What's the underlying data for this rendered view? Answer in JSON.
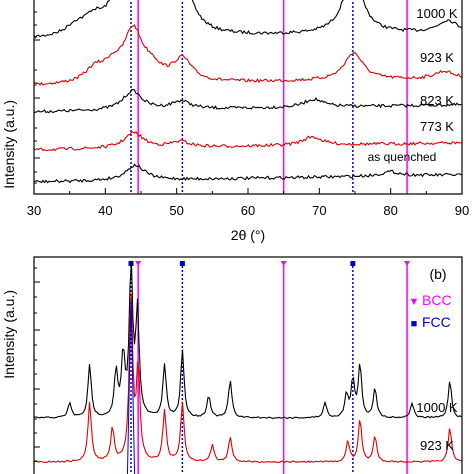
{
  "chart_data": [
    {
      "panel": "a",
      "type": "line",
      "ylabel": "Intensity (a.u.)",
      "xlabel": "2θ (°)",
      "xlim": [
        30,
        90
      ],
      "xticks": [
        "30",
        "40",
        "50",
        "60",
        "70",
        "80",
        "90"
      ],
      "colors": {
        "black": "#000000",
        "red": "#e00000",
        "bcc_line": "#ff00ff",
        "fcc_line": "#0000cc"
      },
      "reference_lines": {
        "bcc": [
          44.6,
          65.0,
          82.3
        ],
        "fcc": [
          43.6,
          50.8,
          74.7
        ]
      },
      "series": [
        {
          "name": "1000 K",
          "color": "#000000",
          "peaks": [
            [
              35.8,
              0.15
            ],
            [
              38.3,
              0.25
            ],
            [
              41.2,
              0.2
            ],
            [
              43.6,
              1.0
            ],
            [
              44.6,
              0.8
            ],
            [
              47.5,
              0.35
            ],
            [
              50.8,
              0.9
            ],
            [
              74.7,
              1.0
            ],
            [
              88.0,
              0.2
            ]
          ]
        },
        {
          "name": "923 K",
          "color": "#e00000",
          "peaks": [
            [
              38.5,
              0.25
            ],
            [
              41.0,
              0.3
            ],
            [
              43.9,
              1.0
            ],
            [
              46.5,
              0.25
            ],
            [
              50.8,
              0.45
            ],
            [
              74.8,
              0.55
            ],
            [
              87.5,
              0.15
            ]
          ]
        },
        {
          "name": "823 K",
          "color": "#000000",
          "peaks": [
            [
              43.8,
              0.6
            ],
            [
              50.6,
              0.25
            ],
            [
              69.2,
              0.25
            ]
          ]
        },
        {
          "name": "773 K",
          "color": "#e00000",
          "peaks": [
            [
              44.0,
              0.55
            ],
            [
              50.5,
              0.2
            ],
            [
              69.0,
              0.3
            ]
          ]
        },
        {
          "name": "as quenched",
          "color": "#000000",
          "peaks": [
            [
              44.2,
              0.42
            ],
            [
              80.0,
              0.12
            ]
          ]
        }
      ]
    },
    {
      "panel": "b",
      "type": "line",
      "ylabel": "Intensity (a.u.)",
      "panel_label": "(b)",
      "legend": [
        {
          "marker": "▼",
          "label": "BCC",
          "color": "#ff00ff"
        },
        {
          "marker": "■",
          "label": "FCC",
          "color": "#0000cc"
        }
      ],
      "reference_lines": {
        "bcc": [
          44.6,
          65.0,
          82.3
        ],
        "fcc": [
          43.6,
          50.8,
          74.7
        ]
      },
      "series": [
        {
          "name": "1000 K",
          "color": "#000000",
          "peaks": [
            [
              35.0,
              0.1
            ],
            [
              37.8,
              0.35
            ],
            [
              41.5,
              0.3
            ],
            [
              42.5,
              0.4
            ],
            [
              43.6,
              1.0
            ],
            [
              44.5,
              0.7
            ],
            [
              48.3,
              0.35
            ],
            [
              50.8,
              0.45
            ],
            [
              54.5,
              0.15
            ],
            [
              57.5,
              0.25
            ],
            [
              70.8,
              0.1
            ],
            [
              73.8,
              0.15
            ],
            [
              74.7,
              0.25
            ],
            [
              75.7,
              0.35
            ],
            [
              77.8,
              0.2
            ],
            [
              83.0,
              0.1
            ],
            [
              88.3,
              0.25
            ]
          ]
        },
        {
          "name": "923 K",
          "color": "#e00000",
          "peaks": [
            [
              37.8,
              0.35
            ],
            [
              41.0,
              0.2
            ],
            [
              43.6,
              1.0
            ],
            [
              44.6,
              0.55
            ],
            [
              48.3,
              0.3
            ],
            [
              50.8,
              0.35
            ],
            [
              55.0,
              0.1
            ],
            [
              57.5,
              0.15
            ],
            [
              74.0,
              0.12
            ],
            [
              75.7,
              0.25
            ],
            [
              77.8,
              0.15
            ],
            [
              88.3,
              0.2
            ]
          ]
        }
      ]
    }
  ]
}
